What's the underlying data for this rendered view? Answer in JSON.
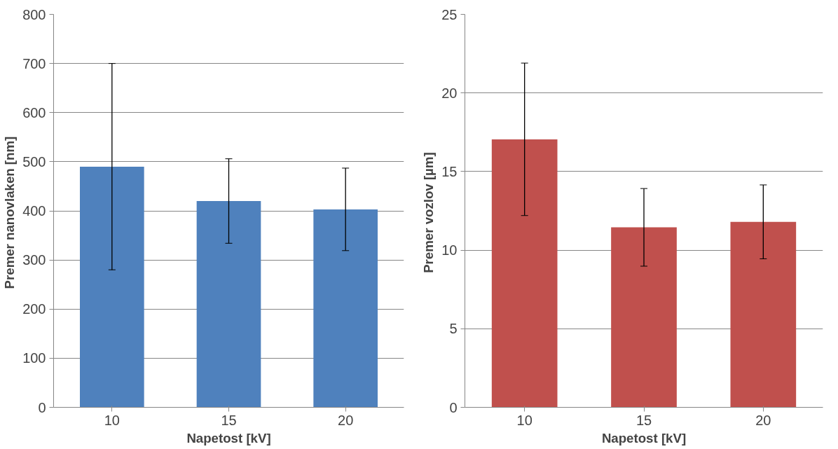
{
  "chart_data": [
    {
      "type": "bar",
      "categories": [
        "10",
        "15",
        "20"
      ],
      "values": [
        490,
        420,
        403
      ],
      "errors": [
        210,
        86,
        84
      ],
      "color": "#4f81bd",
      "xlabel": "Napetost [kV]",
      "ylabel": "Premer  nanovlaken [nm]",
      "ylim": [
        0,
        800
      ],
      "yticks": [
        0,
        100,
        200,
        300,
        400,
        500,
        600,
        700,
        800
      ],
      "grid": "y"
    },
    {
      "type": "bar",
      "categories": [
        "10",
        "15",
        "20"
      ],
      "values": [
        17.05,
        11.45,
        11.8
      ],
      "errors": [
        4.85,
        2.47,
        2.35
      ],
      "color": "#c0504d",
      "xlabel": "Napetost [kV]",
      "ylabel": "Premer  vozlov [µm]",
      "ylim": [
        0,
        25
      ],
      "yticks": [
        0,
        5,
        10,
        15,
        20,
        25
      ],
      "grid": "y"
    }
  ]
}
